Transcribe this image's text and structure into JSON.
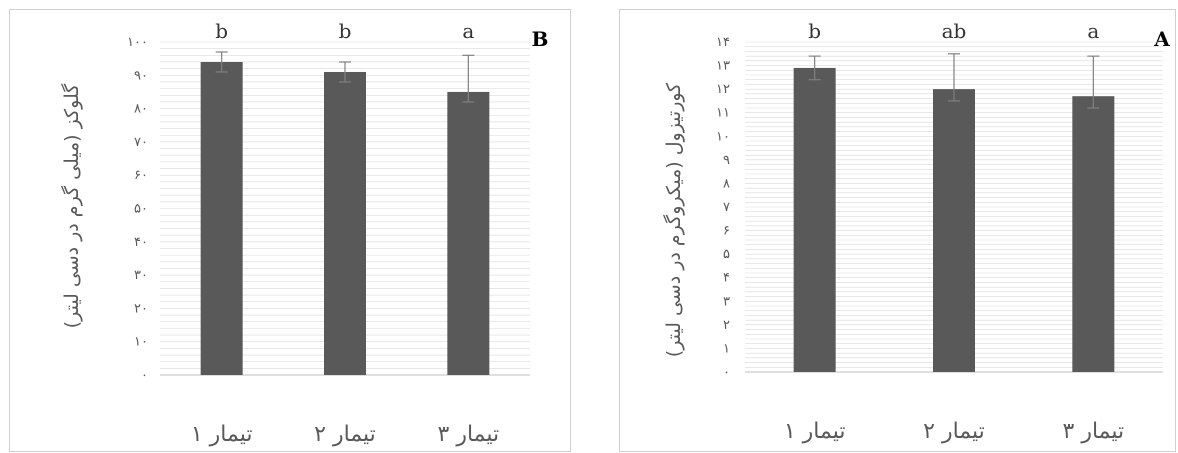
{
  "chart_data": [
    {
      "panel_label": "B",
      "type": "bar",
      "ylabel": "گلوکز (میلی گرم در دسی لیتر)",
      "ylim": [
        0,
        100
      ],
      "ytick_labels": [
        "۰",
        "۱۰",
        "۲۰",
        "۳۰",
        "۴۰",
        "۵۰",
        "۶۰",
        "۷۰",
        "۸۰",
        "۹۰",
        "۱۰۰"
      ],
      "categories": [
        "تیمار ۱",
        "تیمار ۲",
        "تیمار ۳"
      ],
      "values": [
        94,
        91,
        85
      ],
      "error_upper": [
        3,
        3,
        11
      ],
      "error_lower": [
        3,
        3,
        3
      ],
      "significance": [
        "b",
        "b",
        "a"
      ],
      "grid": true
    },
    {
      "panel_label": "A",
      "type": "bar",
      "ylabel": "کورتیزول (میکروگرم در دسی لیتر)",
      "ylim": [
        0,
        14
      ],
      "ytick_labels": [
        "۰",
        "۱",
        "۲",
        "۳",
        "۴",
        "۵",
        "۶",
        "۷",
        "۸",
        "۹",
        "۱۰",
        "۱۱",
        "۱۲",
        "۱۳",
        "۱۴"
      ],
      "categories": [
        "تیمار ۱",
        "تیمار ۲",
        "تیمار ۳"
      ],
      "values": [
        12.9,
        12.0,
        11.7
      ],
      "error_upper": [
        0.5,
        1.5,
        1.7
      ],
      "error_lower": [
        0.5,
        0.5,
        0.5
      ],
      "significance": [
        "b",
        "ab",
        "a"
      ],
      "grid": true
    }
  ]
}
